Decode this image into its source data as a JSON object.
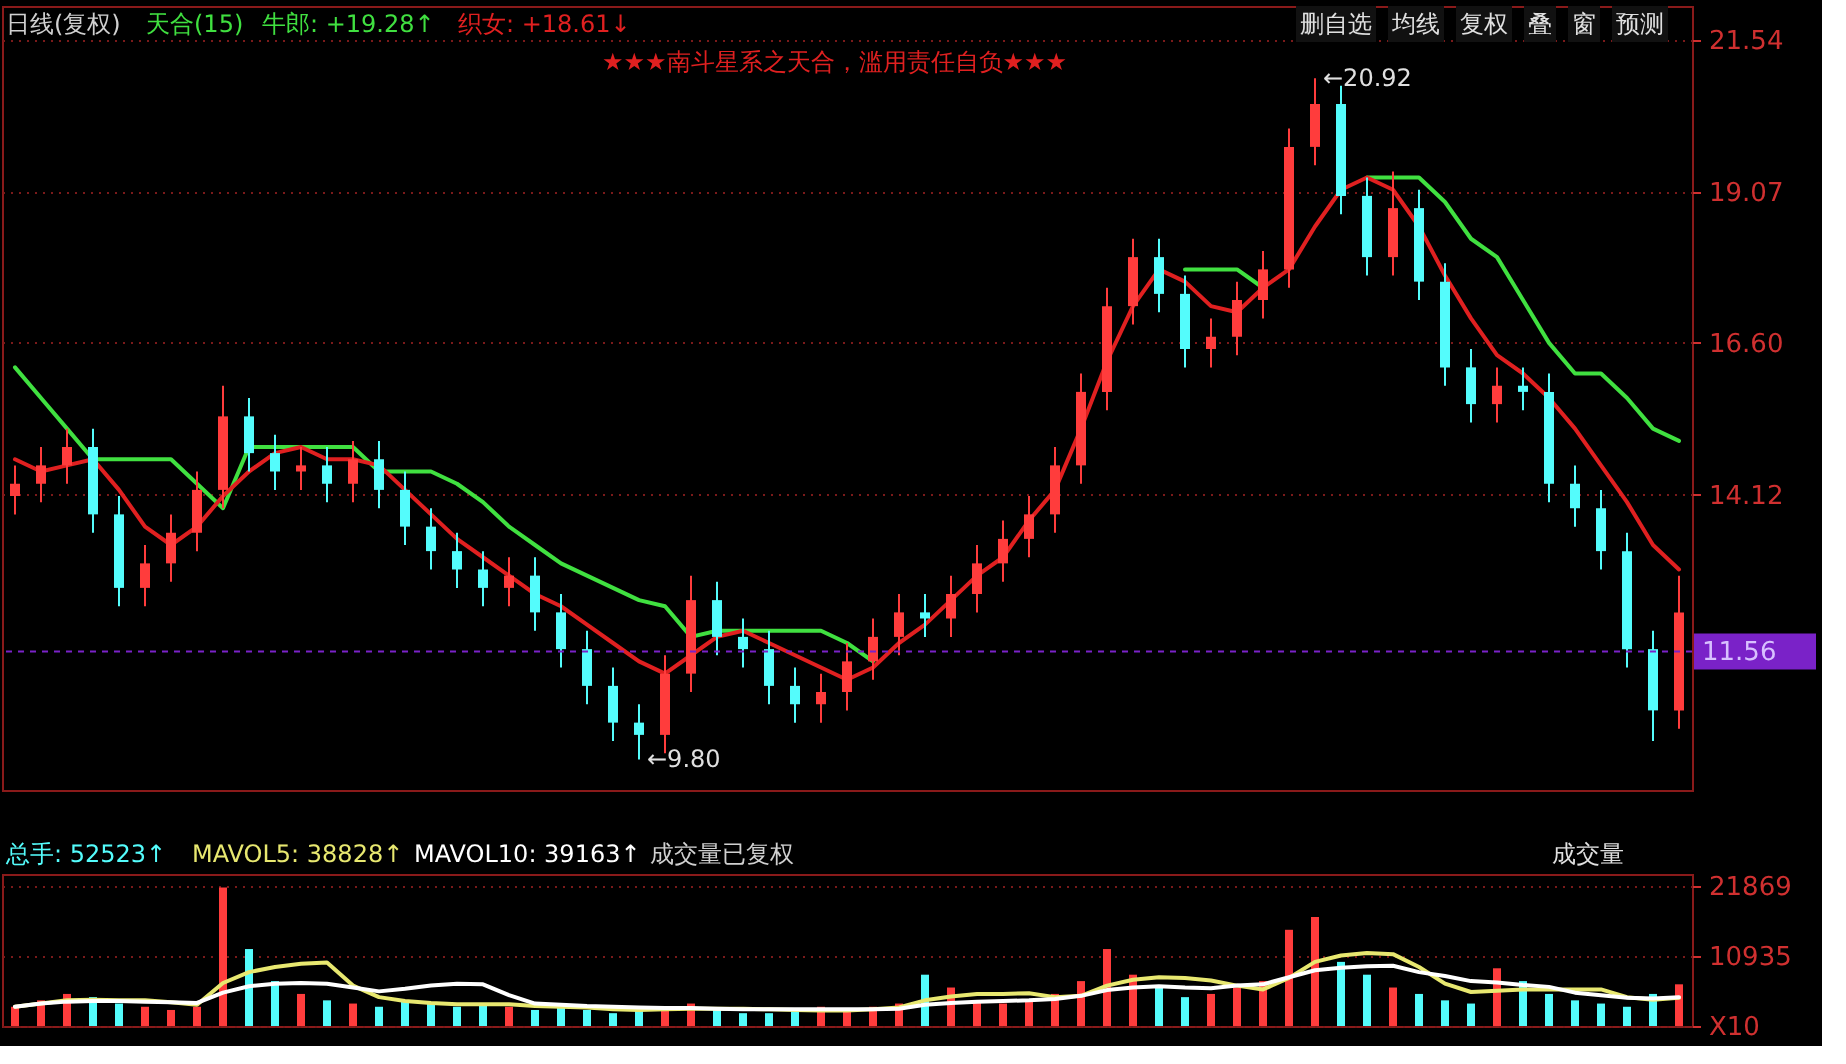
{
  "chart_data": [
    {
      "type": "candlestick",
      "title": "日线(复权)",
      "tick_labels": "y",
      "grid": "y",
      "categories": [
        null,
        null,
        null,
        null,
        null,
        null,
        null,
        null,
        null,
        null,
        null,
        null,
        null,
        null,
        null,
        null,
        null,
        null,
        null,
        null,
        null,
        null,
        null,
        null,
        null,
        null,
        null,
        null,
        null,
        null,
        null,
        null,
        null,
        null,
        null,
        null,
        null,
        null,
        null,
        null,
        null,
        null,
        null,
        null,
        null,
        null,
        null,
        null,
        null,
        null,
        null,
        null,
        null,
        null,
        null,
        null,
        null,
        null,
        null,
        null,
        null,
        null,
        null,
        null,
        null
      ],
      "ohlc": [
        [
          14.1,
          14.6,
          13.8,
          14.3
        ],
        [
          14.3,
          14.9,
          14.0,
          14.6
        ],
        [
          14.6,
          15.2,
          14.3,
          14.9
        ],
        [
          14.9,
          15.2,
          13.5,
          13.8
        ],
        [
          13.8,
          14.1,
          12.3,
          12.6
        ],
        [
          12.6,
          13.3,
          12.3,
          13.0
        ],
        [
          13.0,
          13.8,
          12.7,
          13.5
        ],
        [
          13.5,
          14.5,
          13.2,
          14.2
        ],
        [
          14.2,
          15.9,
          13.9,
          15.4
        ],
        [
          15.4,
          15.7,
          14.5,
          14.8
        ],
        [
          14.8,
          15.1,
          14.2,
          14.5
        ],
        [
          14.5,
          14.9,
          14.2,
          14.6
        ],
        [
          14.6,
          14.9,
          14.0,
          14.3
        ],
        [
          14.3,
          15.0,
          14.0,
          14.7
        ],
        [
          14.7,
          15.0,
          13.9,
          14.2
        ],
        [
          14.2,
          14.5,
          13.3,
          13.6
        ],
        [
          13.6,
          13.9,
          12.9,
          13.2
        ],
        [
          13.2,
          13.5,
          12.6,
          12.9
        ],
        [
          12.9,
          13.2,
          12.3,
          12.6
        ],
        [
          12.6,
          13.1,
          12.3,
          12.8
        ],
        [
          12.8,
          13.1,
          11.9,
          12.2
        ],
        [
          12.2,
          12.5,
          11.3,
          11.6
        ],
        [
          11.6,
          11.9,
          10.7,
          11.0
        ],
        [
          11.0,
          11.3,
          10.1,
          10.4
        ],
        [
          10.4,
          10.7,
          9.8,
          10.2
        ],
        [
          10.2,
          11.5,
          9.9,
          11.2
        ],
        [
          11.2,
          12.8,
          10.9,
          12.4
        ],
        [
          12.4,
          12.7,
          11.5,
          11.8
        ],
        [
          11.8,
          12.1,
          11.3,
          11.6
        ],
        [
          11.6,
          11.9,
          10.7,
          11.0
        ],
        [
          11.0,
          11.3,
          10.4,
          10.7
        ],
        [
          10.7,
          11.2,
          10.4,
          10.9
        ],
        [
          10.9,
          11.7,
          10.6,
          11.4
        ],
        [
          11.4,
          12.1,
          11.1,
          11.8
        ],
        [
          11.8,
          12.5,
          11.5,
          12.2
        ],
        [
          12.2,
          12.5,
          11.8,
          12.1
        ],
        [
          12.1,
          12.8,
          11.8,
          12.5
        ],
        [
          12.5,
          13.3,
          12.2,
          13.0
        ],
        [
          13.0,
          13.7,
          12.7,
          13.4
        ],
        [
          13.4,
          14.1,
          13.1,
          13.8
        ],
        [
          13.8,
          14.9,
          13.5,
          14.6
        ],
        [
          14.6,
          16.1,
          14.3,
          15.8
        ],
        [
          15.8,
          17.5,
          15.5,
          17.2
        ],
        [
          17.2,
          18.3,
          16.9,
          18.0
        ],
        [
          18.0,
          18.3,
          17.1,
          17.4
        ],
        [
          17.4,
          17.7,
          16.2,
          16.5
        ],
        [
          16.5,
          17.0,
          16.2,
          16.7
        ],
        [
          16.7,
          17.6,
          16.4,
          17.3
        ],
        [
          17.3,
          18.1,
          17.0,
          17.8
        ],
        [
          17.8,
          20.1,
          17.5,
          19.8
        ],
        [
          19.8,
          20.92,
          19.5,
          20.5
        ],
        [
          20.5,
          20.8,
          18.7,
          19.0
        ],
        [
          19.0,
          19.3,
          17.7,
          18.0
        ],
        [
          18.0,
          19.4,
          17.7,
          18.8
        ],
        [
          18.8,
          19.1,
          17.3,
          17.6
        ],
        [
          17.6,
          17.9,
          15.9,
          16.2
        ],
        [
          16.2,
          16.5,
          15.3,
          15.6
        ],
        [
          15.6,
          16.2,
          15.3,
          15.9
        ],
        [
          15.9,
          16.2,
          15.5,
          15.8
        ],
        [
          15.8,
          16.1,
          14.0,
          14.3
        ],
        [
          14.3,
          14.6,
          13.6,
          13.9
        ],
        [
          13.9,
          14.2,
          12.9,
          13.2
        ],
        [
          13.2,
          13.5,
          11.3,
          11.6
        ],
        [
          11.6,
          11.9,
          10.1,
          10.6
        ],
        [
          10.6,
          12.8,
          10.3,
          12.2
        ]
      ],
      "colors": [
        "#ff3c3c",
        "#ff3c3c",
        "#ff3c3c",
        "#54fcfc",
        "#54fcfc",
        "#ff3c3c",
        "#ff3c3c",
        "#ff3c3c",
        "#ff3c3c",
        "#54fcfc",
        "#54fcfc",
        "#ff3c3c",
        "#54fcfc",
        "#ff3c3c",
        "#54fcfc",
        "#54fcfc",
        "#54fcfc",
        "#54fcfc",
        "#54fcfc",
        "#ff3c3c",
        "#54fcfc",
        "#54fcfc",
        "#54fcfc",
        "#54fcfc",
        "#54fcfc",
        "#ff3c3c",
        "#ff3c3c",
        "#54fcfc",
        "#54fcfc",
        "#54fcfc",
        "#54fcfc",
        "#ff3c3c",
        "#ff3c3c",
        "#ff3c3c",
        "#ff3c3c",
        "#54fcfc",
        "#ff3c3c",
        "#ff3c3c",
        "#ff3c3c",
        "#ff3c3c",
        "#ff3c3c",
        "#ff3c3c",
        "#ff3c3c",
        "#ff3c3c",
        "#54fcfc",
        "#54fcfc",
        "#ff3c3c",
        "#ff3c3c",
        "#ff3c3c",
        "#ff3c3c",
        "#ff3c3c",
        "#54fcfc",
        "#54fcfc",
        "#ff3c3c",
        "#54fcfc",
        "#54fcfc",
        "#54fcfc",
        "#ff3c3c",
        "#54fcfc",
        "#54fcfc",
        "#54fcfc",
        "#54fcfc",
        "#54fcfc",
        "#54fcfc",
        "#ff3c3c"
      ],
      "series": [
        {
          "type": "line",
          "color": "#40e040",
          "values": [
            16.2,
            15.7,
            15.2,
            14.7,
            14.7,
            14.7,
            14.7,
            14.3,
            13.9,
            14.9,
            14.9,
            14.9,
            14.9,
            14.9,
            14.5,
            14.5,
            14.5,
            14.3,
            14.0,
            13.6,
            13.3,
            13.0,
            12.8,
            12.6,
            12.4,
            12.3,
            11.8,
            11.9,
            11.9,
            11.9,
            11.9,
            11.9,
            11.7,
            11.4,
            null,
            null,
            null,
            null,
            null,
            null,
            null,
            null,
            null,
            null,
            null,
            17.8,
            17.8,
            17.8,
            17.5,
            null,
            null,
            null,
            19.3,
            19.3,
            19.3,
            18.9,
            18.3,
            18.0,
            17.3,
            16.6,
            16.1,
            16.1,
            15.7,
            15.2,
            15.0
          ]
        },
        {
          "type": "line",
          "color": "#e02020",
          "values": [
            14.7,
            14.5,
            14.6,
            14.7,
            14.2,
            13.6,
            13.3,
            13.6,
            14.1,
            14.5,
            14.8,
            14.9,
            14.7,
            14.7,
            14.6,
            14.2,
            13.8,
            13.4,
            13.1,
            12.8,
            12.5,
            12.3,
            12.0,
            11.7,
            11.4,
            11.2,
            11.5,
            11.8,
            11.9,
            11.7,
            11.5,
            11.3,
            11.1,
            11.3,
            11.7,
            12.0,
            12.4,
            12.8,
            13.1,
            13.7,
            14.2,
            15.2,
            16.3,
            17.2,
            17.8,
            17.6,
            17.2,
            17.1,
            17.5,
            17.8,
            18.5,
            19.1,
            19.3,
            19.1,
            18.5,
            17.7,
            17.0,
            16.4,
            16.1,
            15.7,
            15.2,
            14.6,
            14.0,
            13.3,
            12.9
          ]
        }
      ],
      "ylim": [
        9.3,
        22.1
      ],
      "yticks": [
        21.54,
        19.07,
        {
          "value": 16.6,
          "label": "16.60"
        },
        14.12
      ],
      "ref_lines": [
        {
          "axis": "y",
          "value": 11.56,
          "label": "11.56",
          "color": "#7a22c8"
        }
      ],
      "annotations": [
        "天合(15)",
        "牛郎: +19.28↑",
        "织女: +18.61↓",
        "★★★南斗星系之天合，滥用责任自负★★★",
        "删自选",
        "均线",
        "复权",
        "叠",
        "窗",
        "预测",
        "←20.92",
        "←9.80"
      ]
    },
    {
      "type": "bar",
      "tick_labels": "y",
      "grid": "y",
      "categories": [
        null,
        null,
        null,
        null,
        null,
        null,
        null,
        null,
        null,
        null,
        null,
        null,
        null,
        null,
        null,
        null,
        null,
        null,
        null,
        null,
        null,
        null,
        null,
        null,
        null,
        null,
        null,
        null,
        null,
        null,
        null,
        null,
        null,
        null,
        null,
        null,
        null,
        null,
        null,
        null,
        null,
        null,
        null,
        null,
        null,
        null,
        null,
        null,
        null,
        null,
        null,
        null,
        null,
        null,
        null,
        null,
        null,
        null,
        null,
        null,
        null,
        null,
        null,
        null,
        null
      ],
      "series": [
        {
          "type": "bar",
          "values": [
            3000,
            4000,
            5000,
            4500,
            3500,
            3000,
            2500,
            3000,
            21600,
            12000,
            7000,
            5000,
            4000,
            3500,
            3000,
            4000,
            3500,
            3000,
            3500,
            3000,
            2500,
            3000,
            2500,
            2000,
            2500,
            3000,
            3500,
            2500,
            2000,
            2000,
            2500,
            3000,
            2500,
            3000,
            3500,
            8000,
            6000,
            4000,
            3500,
            4000,
            5000,
            7000,
            12000,
            8000,
            6000,
            4500,
            5000,
            6000,
            7000,
            15000,
            17000,
            10000,
            8000,
            6000,
            5000,
            4000,
            3500,
            9000,
            7000,
            5000,
            4000,
            3500,
            3000,
            5000,
            6500
          ],
          "colors": [
            "#ff3c3c",
            "#ff3c3c",
            "#ff3c3c",
            "#54fcfc",
            "#54fcfc",
            "#ff3c3c",
            "#ff3c3c",
            "#ff3c3c",
            "#ff3c3c",
            "#54fcfc",
            "#54fcfc",
            "#ff3c3c",
            "#54fcfc",
            "#ff3c3c",
            "#54fcfc",
            "#54fcfc",
            "#54fcfc",
            "#54fcfc",
            "#54fcfc",
            "#ff3c3c",
            "#54fcfc",
            "#54fcfc",
            "#54fcfc",
            "#54fcfc",
            "#54fcfc",
            "#ff3c3c",
            "#ff3c3c",
            "#54fcfc",
            "#54fcfc",
            "#54fcfc",
            "#54fcfc",
            "#ff3c3c",
            "#ff3c3c",
            "#ff3c3c",
            "#ff3c3c",
            "#54fcfc",
            "#ff3c3c",
            "#ff3c3c",
            "#ff3c3c",
            "#ff3c3c",
            "#ff3c3c",
            "#ff3c3c",
            "#ff3c3c",
            "#ff3c3c",
            "#54fcfc",
            "#54fcfc",
            "#ff3c3c",
            "#ff3c3c",
            "#ff3c3c",
            "#ff3c3c",
            "#ff3c3c",
            "#54fcfc",
            "#54fcfc",
            "#ff3c3c",
            "#54fcfc",
            "#54fcfc",
            "#54fcfc",
            "#ff3c3c",
            "#54fcfc",
            "#54fcfc",
            "#54fcfc",
            "#54fcfc",
            "#54fcfc",
            "#54fcfc",
            "#ff3c3c"
          ]
        },
        {
          "type": "line",
          "color": "#e8e870",
          "values": [
            3000,
            3500,
            4000,
            4100,
            4000,
            4000,
            3700,
            3300,
            6700,
            8400,
            9200,
            9700,
            9900,
            6300,
            4500,
            3900,
            3600,
            3400,
            3400,
            3400,
            3100,
            3000,
            2900,
            2600,
            2500,
            2600,
            2700,
            2700,
            2700,
            2600,
            2500,
            2400,
            2400,
            2600,
            2900,
            4000,
            4600,
            5000,
            5000,
            5100,
            4500,
            4700,
            6300,
            7200,
            7600,
            7500,
            7100,
            6300,
            5700,
            7500,
            10000,
            11000,
            11400,
            11200,
            9200,
            6600,
            5300,
            5500,
            5700,
            5700,
            5700,
            5700,
            4500,
            4100,
            4400
          ]
        },
        {
          "type": "line",
          "color": "#ffffff",
          "values": [
            3000,
            3500,
            3800,
            3900,
            3900,
            3800,
            3700,
            3600,
            5200,
            6200,
            6600,
            6700,
            6600,
            6000,
            5400,
            5800,
            6300,
            6600,
            6500,
            4800,
            3500,
            3300,
            3100,
            3000,
            2900,
            2800,
            2800,
            2700,
            2600,
            2600,
            2600,
            2600,
            2600,
            2600,
            2700,
            3300,
            3600,
            3800,
            3900,
            4000,
            4200,
            4700,
            5600,
            6000,
            6200,
            6000,
            5900,
            6300,
            6500,
            7600,
            8700,
            9100,
            9300,
            9400,
            8400,
            7800,
            7000,
            6800,
            6400,
            6100,
            5200,
            4800,
            4400,
            4300,
            4500
          ]
        }
      ],
      "ylim": [
        0,
        23700
      ],
      "yticks": [
        21869,
        10935,
        {
          "value": 0,
          "label": "X10"
        }
      ],
      "annotations": [
        "总手: 52523↑",
        "MAVOL5: 38828↑",
        "MAVOL10: 39163↑",
        "成交量已复权",
        "成交量"
      ]
    }
  ]
}
